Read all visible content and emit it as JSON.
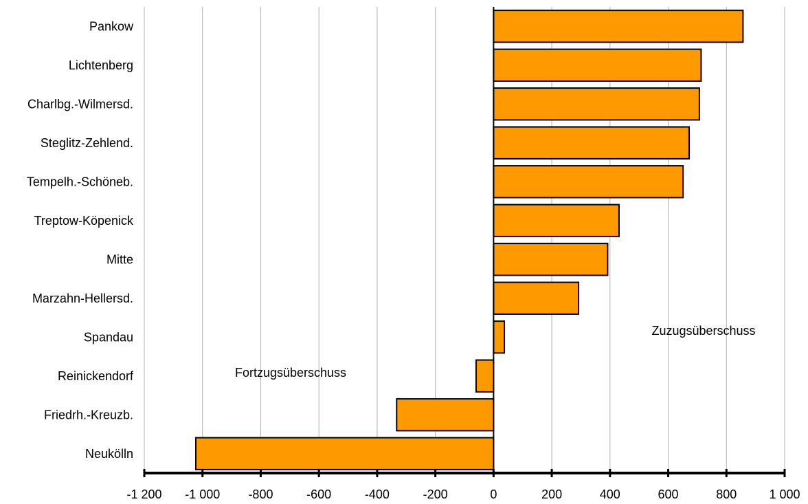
{
  "chart_data": {
    "type": "bar",
    "orientation": "horizontal",
    "categories": [
      "Pankow",
      "Lichtenberg",
      "Charlbg.-Wilmersd.",
      "Steglitz-Zehlend.",
      "Tempelh.-Schöneb.",
      "Treptow-Köpenick",
      "Mitte",
      "Marzahn-Hellersd.",
      "Spandau",
      "Reinickendorf",
      "Friedrh.-Kreuzb.",
      "Neukölln"
    ],
    "values": [
      857,
      713,
      707,
      672,
      651,
      431,
      392,
      292,
      37,
      -60,
      -333,
      -1023
    ],
    "xlim": [
      -1200,
      1000
    ],
    "x_ticks": [
      -1200,
      -1000,
      -800,
      -600,
      -400,
      -200,
      0,
      200,
      400,
      600,
      800,
      1000
    ],
    "x_tick_labels": [
      "-1 200",
      "-1 000",
      "-800",
      "-600",
      "-400",
      "-200",
      "0",
      "200",
      "400",
      "600",
      "800",
      "1 000"
    ],
    "grid": "vertical",
    "annotations": {
      "positive": "Zuzugsüberschuss",
      "negative": "Fortzugsüberschuss"
    },
    "colors": {
      "bar_fill": "#ff9900",
      "bar_stroke": "#000000",
      "grid": "#b0b0b0",
      "axis": "#000000"
    }
  }
}
